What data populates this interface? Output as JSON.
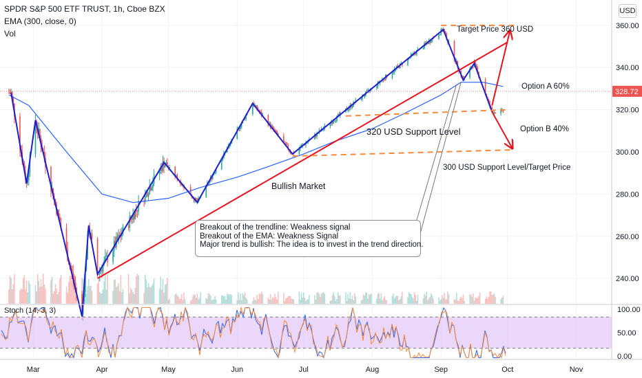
{
  "header": {
    "symbol_line": "SPDR S&P 500 ETF TRUST, 1h, Cboe BZX",
    "ema_line": "EMA (300, close, 0)",
    "vol_line": "Vol"
  },
  "currency_button": "USD",
  "price_tag": "328.72",
  "stoch_label": "Stoch (14, 3, 3)",
  "annotations": {
    "target_price": "Target Price 360 USD",
    "option_a": "Option A 60%",
    "option_b": "Option B 40%",
    "support_320": "320 USD Support Level",
    "support_300": "300 USD Support Level/Target Price",
    "bullish": "Bullish Market",
    "note_line1": "Breakout of the trendline: Weakness signal",
    "note_line2": "Breakout of the EMA: Weakness Signal",
    "note_line3": "Major trend is bullish: The idea is to invest in the trend direction."
  },
  "colors": {
    "up": "#26a69a",
    "down": "#ef5350",
    "ema": "#2962ff",
    "pattern": "#1d1ecf",
    "trendline": "#e8121f",
    "dashed": "#f7893a",
    "stoch_fill": "#e1c6f7",
    "stoch_k": "#2962ff",
    "stoch_d": "#f7893a"
  },
  "chart_data": {
    "type": "line",
    "title": "SPDR S&P 500 ETF TRUST, 1h, Cboe BZX",
    "ylim": [
      228,
      372
    ],
    "y_ticks": [
      "360.00",
      "340.00",
      "320.00",
      "300.00",
      "280.00",
      "260.00",
      "240.00"
    ],
    "x_ticks": [
      "Mar",
      "Apr",
      "May",
      "Jun",
      "Jul",
      "Aug",
      "Sep",
      "Oct",
      "Nov"
    ],
    "last_price": 328.72,
    "pattern_zigzag": {
      "x": [
        "2020-02-20",
        "2020-02-27",
        "2020-03-02",
        "2020-03-23",
        "2020-03-26",
        "2020-03-30",
        "2020-04-29",
        "2020-05-14",
        "2020-06-08",
        "2020-06-26",
        "2020-09-02",
        "2020-09-11",
        "2020-09-16",
        "2020-09-24"
      ],
      "y": [
        328,
        285,
        315,
        222,
        265,
        242,
        295,
        276,
        323,
        299,
        358,
        334,
        342,
        319
      ]
    },
    "trendline": {
      "x": [
        "2020-03-30",
        "2020-10-01"
      ],
      "y": [
        240,
        352
      ]
    },
    "ema_300": {
      "x": [
        "2020-02-19",
        "2020-02-28",
        "2020-03-16",
        "2020-04-01",
        "2020-04-15",
        "2020-05-01",
        "2020-05-15",
        "2020-06-01",
        "2020-06-15",
        "2020-07-01",
        "2020-07-15",
        "2020-08-01",
        "2020-08-15",
        "2020-09-01",
        "2020-09-10",
        "2020-09-20",
        "2020-09-29"
      ],
      "y": [
        327,
        322,
        300,
        280,
        276,
        278,
        283,
        288,
        293,
        299,
        305,
        311,
        318,
        327,
        333,
        333,
        331
      ]
    },
    "levels": [
      {
        "name": "Target Price 360 USD",
        "x": [
          "2020-09-01",
          "2020-10-04"
        ],
        "y": [
          360,
          360
        ]
      },
      {
        "name": "320 USD Support Level",
        "x": [
          "2020-07-20",
          "2020-10-01"
        ],
        "y": [
          317,
          320
        ]
      },
      {
        "name": "300 USD Support Level/Target Price",
        "x": [
          "2020-06-26",
          "2020-10-04"
        ],
        "y": [
          298,
          301
        ]
      }
    ],
    "projections": [
      {
        "name": "Option A 60%",
        "from": [
          "2020-09-24",
          322
        ],
        "to": [
          "2020-10-02",
          357
        ]
      },
      {
        "name": "Option B 40%",
        "from": [
          "2020-09-24",
          319
        ],
        "to": [
          "2020-10-03",
          302
        ]
      }
    ],
    "stochastic": {
      "name": "Stoch (14, 3, 3)",
      "ylim": [
        0,
        100
      ],
      "bands": [
        20,
        80
      ],
      "ticks": [
        "100.00",
        "50.00",
        "0.00"
      ]
    }
  }
}
